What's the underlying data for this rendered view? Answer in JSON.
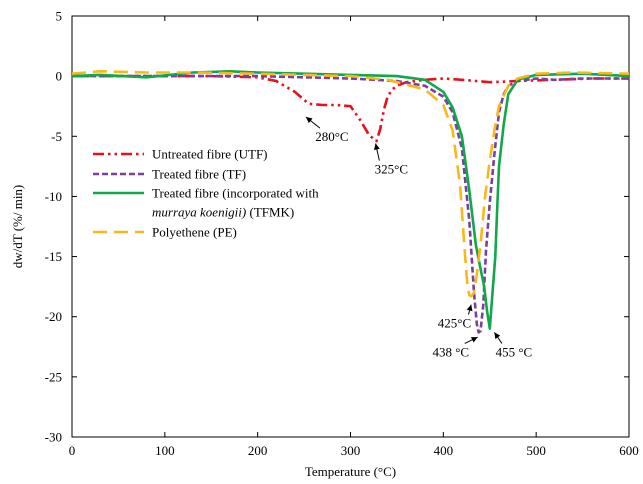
{
  "chart_data": {
    "type": "line",
    "xlabel": "Temperature (°C)",
    "ylabel": "dw/dT (%/ min)",
    "xlim": [
      0,
      600
    ],
    "ylim": [
      -30,
      5
    ],
    "xticks": [
      0,
      100,
      200,
      300,
      400,
      500,
      600
    ],
    "yticks": [
      5,
      0,
      -5,
      -10,
      -15,
      -20,
      -25,
      -30
    ],
    "grid": false,
    "legend_position": "left",
    "series": [
      {
        "name": "Untreated fibre (UTF)",
        "legend_label_parts": [
          {
            "text": "Untreated fibre (UTF)",
            "italic": false
          }
        ],
        "color": "#e8101c",
        "dash": "dash-dot-dot",
        "x": [
          0,
          50,
          100,
          150,
          200,
          220,
          240,
          255,
          270,
          285,
          300,
          310,
          320,
          328,
          332,
          336,
          340,
          345,
          350,
          360,
          380,
          400,
          420,
          450,
          480,
          520,
          560,
          600
        ],
        "y": [
          0,
          0,
          0,
          0,
          -0.1,
          -0.4,
          -1.3,
          -2.3,
          -2.4,
          -2.4,
          -2.5,
          -3.6,
          -4.9,
          -5.4,
          -4.4,
          -2.8,
          -1.7,
          -1.1,
          -0.8,
          -0.5,
          -0.3,
          -0.2,
          -0.3,
          -0.5,
          -0.4,
          -0.3,
          -0.2,
          -0.2
        ]
      },
      {
        "name": "Treated fibre (TF)",
        "legend_label_parts": [
          {
            "text": "Treated fibre (TF)",
            "italic": false
          }
        ],
        "color": "#7b3fa0",
        "dash": "dashed",
        "x": [
          0,
          50,
          100,
          150,
          200,
          250,
          300,
          350,
          380,
          400,
          410,
          420,
          428,
          433,
          436,
          438,
          440,
          443,
          446,
          450,
          455,
          460,
          465,
          470,
          480,
          500,
          520,
          550,
          600
        ],
        "y": [
          0,
          0,
          0,
          0,
          0,
          -0.1,
          -0.2,
          -0.4,
          -0.8,
          -1.7,
          -3.0,
          -6.0,
          -12.0,
          -18.0,
          -20.6,
          -21.3,
          -21.2,
          -19.0,
          -14.5,
          -10.5,
          -6.5,
          -3.0,
          -1.5,
          -0.8,
          -0.4,
          -0.2,
          -0.3,
          -0.2,
          -0.2
        ]
      },
      {
        "name": "Treated fibre (incorporated with murraya koenigii) (TFMK)",
        "legend_label_parts": [
          {
            "text": "Treated fibre (incorporated with",
            "italic": false
          },
          {
            "text": "murraya koenigii)",
            "italic": true,
            "newline": true
          },
          {
            "text": " (TFMK)",
            "italic": false
          }
        ],
        "color": "#10a84a",
        "dash": "solid",
        "x": [
          0,
          30,
          80,
          130,
          170,
          200,
          250,
          300,
          350,
          380,
          400,
          410,
          420,
          428,
          435,
          440,
          444,
          447,
          450,
          453,
          456,
          458,
          460,
          465,
          470,
          480,
          500,
          550,
          600
        ],
        "y": [
          0,
          0.1,
          -0.1,
          0.3,
          0.4,
          0.3,
          0.2,
          0.1,
          0,
          -0.3,
          -1.3,
          -2.6,
          -5.0,
          -9.5,
          -14.0,
          -16.0,
          -17.5,
          -19.5,
          -21.0,
          -18.0,
          -15.0,
          -11.0,
          -7.5,
          -4.0,
          -1.5,
          -0.3,
          0.1,
          0.2,
          0
        ]
      },
      {
        "name": "Polyethene (PE)",
        "legend_label_parts": [
          {
            "text": " Polyethene (PE)",
            "italic": false
          }
        ],
        "color": "#f9b81a",
        "dash": "long-dash",
        "x": [
          0,
          30,
          80,
          130,
          200,
          250,
          300,
          340,
          360,
          380,
          400,
          410,
          418,
          423,
          426,
          428,
          430,
          433,
          436,
          440,
          445,
          450,
          455,
          460,
          470,
          480,
          500,
          540,
          600
        ],
        "y": [
          0.2,
          0.4,
          0.3,
          0.3,
          0.2,
          0.1,
          0,
          -0.3,
          -0.7,
          -1.1,
          -2.4,
          -4.5,
          -9.0,
          -14.5,
          -17.5,
          -18.2,
          -18.3,
          -18.0,
          -16.5,
          -14.0,
          -10.0,
          -7.0,
          -4.5,
          -2.5,
          -0.8,
          -0.2,
          0.2,
          0.3,
          0.2
        ]
      }
    ],
    "annotations": [
      {
        "text": "280°C",
        "label_x": 280,
        "label_y": -5.4,
        "arrow_to": [
          252,
          -3.4
        ]
      },
      {
        "text": "325°C",
        "label_x": 344,
        "label_y": -8.1,
        "arrow_to": [
          327,
          -5.6
        ]
      },
      {
        "text": "425°C",
        "label_x": 412,
        "label_y": -20.9,
        "arrow_to": [
          430,
          -19.0
        ]
      },
      {
        "text": "438 °C",
        "label_x": 408,
        "label_y": -23.3,
        "arrow_to": [
          437,
          -21.7
        ]
      },
      {
        "text": "455 °C",
        "label_x": 476,
        "label_y": -23.3,
        "arrow_to": [
          455,
          -21.3
        ]
      }
    ]
  }
}
